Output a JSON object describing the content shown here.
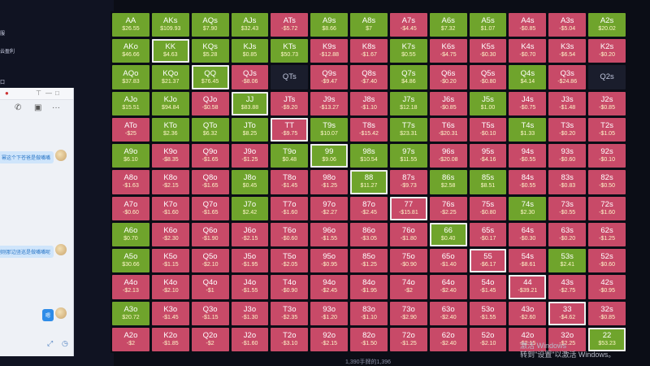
{
  "desktop": {
    "menu_fragments": [
      "服",
      "云盈利",
      "",
      "口"
    ]
  },
  "chat": {
    "messages": [
      {
        "text": "幂这个下苍爸是做嘴嘴"
      },
      {
        "text": "刚刚那边竖巡是做嘴嘴呢"
      },
      {
        "text": "嗯"
      }
    ]
  },
  "grid": [
    [
      {
        "h": "AA",
        "v": "$26.55",
        "c": "green"
      },
      {
        "h": "AKs",
        "v": "$109.93",
        "c": "green"
      },
      {
        "h": "AQs",
        "v": "$7.90",
        "c": "green"
      },
      {
        "h": "AJs",
        "v": "$32.43",
        "c": "green"
      },
      {
        "h": "ATs",
        "v": "-$5.72",
        "c": "red"
      },
      {
        "h": "A9s",
        "v": "$8.66",
        "c": "green"
      },
      {
        "h": "A8s",
        "v": "$7",
        "c": "green"
      },
      {
        "h": "A7s",
        "v": "-$4.45",
        "c": "red"
      },
      {
        "h": "A6s",
        "v": "$7.32",
        "c": "green"
      },
      {
        "h": "A5s",
        "v": "$1.07",
        "c": "green"
      },
      {
        "h": "A4s",
        "v": "-$0.85",
        "c": "red"
      },
      {
        "h": "A3s",
        "v": "-$5.04",
        "c": "red"
      },
      {
        "h": "A2s",
        "v": "$20.02",
        "c": "green"
      }
    ],
    [
      {
        "h": "AKo",
        "v": "$46.66",
        "c": "green"
      },
      {
        "h": "KK",
        "v": "$4.63",
        "c": "green",
        "sel": true
      },
      {
        "h": "KQs",
        "v": "$5.28",
        "c": "green"
      },
      {
        "h": "KJs",
        "v": "$0.85",
        "c": "green"
      },
      {
        "h": "KTs",
        "v": "$50.73",
        "c": "green"
      },
      {
        "h": "K9s",
        "v": "-$12.88",
        "c": "red"
      },
      {
        "h": "K8s",
        "v": "-$1.67",
        "c": "red"
      },
      {
        "h": "K7s",
        "v": "$0.55",
        "c": "green"
      },
      {
        "h": "K6s",
        "v": "-$4.75",
        "c": "red"
      },
      {
        "h": "K5s",
        "v": "-$0.30",
        "c": "red"
      },
      {
        "h": "K4s",
        "v": "-$0.70",
        "c": "red"
      },
      {
        "h": "K3s",
        "v": "-$6.54",
        "c": "red"
      },
      {
        "h": "K2s",
        "v": "-$0.20",
        "c": "red"
      }
    ],
    [
      {
        "h": "AQo",
        "v": "$37.83",
        "c": "green"
      },
      {
        "h": "KQo",
        "v": "$21.37",
        "c": "green"
      },
      {
        "h": "QQ",
        "v": "$76.45",
        "c": "green",
        "sel": true
      },
      {
        "h": "QJs",
        "v": "-$8.06",
        "c": "red"
      },
      {
        "h": "QTs",
        "v": "",
        "c": "dark"
      },
      {
        "h": "Q9s",
        "v": "-$9.47",
        "c": "red"
      },
      {
        "h": "Q8s",
        "v": "-$7.40",
        "c": "red"
      },
      {
        "h": "Q7s",
        "v": "$4.86",
        "c": "green"
      },
      {
        "h": "Q6s",
        "v": "-$0.20",
        "c": "red"
      },
      {
        "h": "Q5s",
        "v": "-$0.80",
        "c": "red"
      },
      {
        "h": "Q4s",
        "v": "$4.14",
        "c": "green"
      },
      {
        "h": "Q3s",
        "v": "-$24.86",
        "c": "red"
      },
      {
        "h": "Q2s",
        "v": "",
        "c": "dark"
      }
    ],
    [
      {
        "h": "AJo",
        "v": "$15.51",
        "c": "green"
      },
      {
        "h": "KJo",
        "v": "$94.84",
        "c": "green"
      },
      {
        "h": "QJo",
        "v": "-$0.58",
        "c": "red"
      },
      {
        "h": "JJ",
        "v": "$83.88",
        "c": "green",
        "sel": true
      },
      {
        "h": "JTs",
        "v": "-$9.20",
        "c": "red"
      },
      {
        "h": "J9s",
        "v": "-$13.27",
        "c": "red"
      },
      {
        "h": "J8s",
        "v": "-$1.10",
        "c": "red"
      },
      {
        "h": "J7s",
        "v": "$12.18",
        "c": "green"
      },
      {
        "h": "J6s",
        "v": "-$0.85",
        "c": "red"
      },
      {
        "h": "J5s",
        "v": "$1.00",
        "c": "green"
      },
      {
        "h": "J4s",
        "v": "-$0.75",
        "c": "red"
      },
      {
        "h": "J3s",
        "v": "-$1.48",
        "c": "red"
      },
      {
        "h": "J2s",
        "v": "-$0.85",
        "c": "red"
      }
    ],
    [
      {
        "h": "ATo",
        "v": "-$25",
        "c": "red"
      },
      {
        "h": "KTo",
        "v": "$2.36",
        "c": "green"
      },
      {
        "h": "QTo",
        "v": "$6.32",
        "c": "green"
      },
      {
        "h": "JTo",
        "v": "$8.25",
        "c": "green"
      },
      {
        "h": "TT",
        "v": "-$9.75",
        "c": "red",
        "sel": true
      },
      {
        "h": "T9s",
        "v": "$10.07",
        "c": "green"
      },
      {
        "h": "T8s",
        "v": "-$15.42",
        "c": "red"
      },
      {
        "h": "T7s",
        "v": "$23.31",
        "c": "green"
      },
      {
        "h": "T6s",
        "v": "-$20.31",
        "c": "red"
      },
      {
        "h": "T5s",
        "v": "-$0.10",
        "c": "red"
      },
      {
        "h": "T4s",
        "v": "$1.33",
        "c": "green"
      },
      {
        "h": "T3s",
        "v": "-$0.20",
        "c": "red"
      },
      {
        "h": "T2s",
        "v": "-$1.05",
        "c": "red"
      }
    ],
    [
      {
        "h": "A9o",
        "v": "$6.10",
        "c": "green"
      },
      {
        "h": "K9o",
        "v": "-$8.35",
        "c": "red"
      },
      {
        "h": "Q9o",
        "v": "-$1.65",
        "c": "red"
      },
      {
        "h": "J9o",
        "v": "-$1.25",
        "c": "red"
      },
      {
        "h": "T9o",
        "v": "$0.48",
        "c": "green"
      },
      {
        "h": "99",
        "v": "$9.06",
        "c": "green",
        "sel": true
      },
      {
        "h": "98s",
        "v": "$10.54",
        "c": "green"
      },
      {
        "h": "97s",
        "v": "$11.55",
        "c": "green"
      },
      {
        "h": "96s",
        "v": "-$20.08",
        "c": "red"
      },
      {
        "h": "95s",
        "v": "-$4.16",
        "c": "red"
      },
      {
        "h": "94s",
        "v": "-$0.55",
        "c": "red"
      },
      {
        "h": "93s",
        "v": "-$0.60",
        "c": "red"
      },
      {
        "h": "92s",
        "v": "-$0.10",
        "c": "red"
      }
    ],
    [
      {
        "h": "A8o",
        "v": "-$1.63",
        "c": "red"
      },
      {
        "h": "K8o",
        "v": "-$2.15",
        "c": "red"
      },
      {
        "h": "Q8o",
        "v": "-$1.65",
        "c": "red"
      },
      {
        "h": "J8o",
        "v": "$0.45",
        "c": "green"
      },
      {
        "h": "T8o",
        "v": "-$1.45",
        "c": "red"
      },
      {
        "h": "98o",
        "v": "-$1.25",
        "c": "red"
      },
      {
        "h": "88",
        "v": "$11.27",
        "c": "green",
        "sel": true
      },
      {
        "h": "87s",
        "v": "-$9.73",
        "c": "red"
      },
      {
        "h": "86s",
        "v": "$2.58",
        "c": "green"
      },
      {
        "h": "85s",
        "v": "$8.51",
        "c": "green"
      },
      {
        "h": "84s",
        "v": "-$0.55",
        "c": "red"
      },
      {
        "h": "83s",
        "v": "-$0.83",
        "c": "red"
      },
      {
        "h": "82s",
        "v": "-$0.50",
        "c": "red"
      }
    ],
    [
      {
        "h": "A7o",
        "v": "-$0.60",
        "c": "red"
      },
      {
        "h": "K7o",
        "v": "-$1.60",
        "c": "red"
      },
      {
        "h": "Q7o",
        "v": "-$1.65",
        "c": "red"
      },
      {
        "h": "J7o",
        "v": "$2.42",
        "c": "green"
      },
      {
        "h": "T7o",
        "v": "-$1.60",
        "c": "red"
      },
      {
        "h": "97o",
        "v": "-$2.27",
        "c": "red"
      },
      {
        "h": "87o",
        "v": "-$2.45",
        "c": "red"
      },
      {
        "h": "77",
        "v": "-$15.81",
        "c": "red",
        "sel": true
      },
      {
        "h": "76s",
        "v": "-$2.25",
        "c": "red"
      },
      {
        "h": "75s",
        "v": "-$0.80",
        "c": "red"
      },
      {
        "h": "74s",
        "v": "$2.30",
        "c": "green"
      },
      {
        "h": "73s",
        "v": "-$0.55",
        "c": "red"
      },
      {
        "h": "72s",
        "v": "-$1.60",
        "c": "red"
      }
    ],
    [
      {
        "h": "A6o",
        "v": "$0.70",
        "c": "green"
      },
      {
        "h": "K6o",
        "v": "-$2.30",
        "c": "red"
      },
      {
        "h": "Q6o",
        "v": "-$1.90",
        "c": "red"
      },
      {
        "h": "J6o",
        "v": "-$2.15",
        "c": "red"
      },
      {
        "h": "T6o",
        "v": "-$0.60",
        "c": "red"
      },
      {
        "h": "96o",
        "v": "-$1.55",
        "c": "red"
      },
      {
        "h": "86o",
        "v": "-$3.05",
        "c": "red"
      },
      {
        "h": "76o",
        "v": "-$1.80",
        "c": "red"
      },
      {
        "h": "66",
        "v": "$0.40",
        "c": "green",
        "sel": true
      },
      {
        "h": "65s",
        "v": "-$0.17",
        "c": "red"
      },
      {
        "h": "64s",
        "v": "-$0.30",
        "c": "red"
      },
      {
        "h": "63s",
        "v": "-$0.20",
        "c": "red"
      },
      {
        "h": "62s",
        "v": "-$1.25",
        "c": "red"
      }
    ],
    [
      {
        "h": "A5o",
        "v": "$30.66",
        "c": "green"
      },
      {
        "h": "K5o",
        "v": "-$1.15",
        "c": "red"
      },
      {
        "h": "Q5o",
        "v": "-$2.10",
        "c": "red"
      },
      {
        "h": "J5o",
        "v": "-$1.95",
        "c": "red"
      },
      {
        "h": "T5o",
        "v": "-$2.05",
        "c": "red"
      },
      {
        "h": "95o",
        "v": "-$0.95",
        "c": "red"
      },
      {
        "h": "85o",
        "v": "-$1.25",
        "c": "red"
      },
      {
        "h": "75o",
        "v": "-$0.90",
        "c": "red"
      },
      {
        "h": "65o",
        "v": "-$1.40",
        "c": "red"
      },
      {
        "h": "55",
        "v": "-$6.17",
        "c": "red",
        "sel": true
      },
      {
        "h": "54s",
        "v": "-$8.61",
        "c": "red"
      },
      {
        "h": "53s",
        "v": "$2.41",
        "c": "green"
      },
      {
        "h": "52s",
        "v": "-$0.60",
        "c": "red"
      }
    ],
    [
      {
        "h": "A4o",
        "v": "-$2.13",
        "c": "red"
      },
      {
        "h": "K4o",
        "v": "-$2.10",
        "c": "red"
      },
      {
        "h": "Q4o",
        "v": "-$1",
        "c": "red"
      },
      {
        "h": "J4o",
        "v": "-$1.55",
        "c": "red"
      },
      {
        "h": "T4o",
        "v": "-$0.90",
        "c": "red"
      },
      {
        "h": "94o",
        "v": "-$2.45",
        "c": "red"
      },
      {
        "h": "84o",
        "v": "-$1.95",
        "c": "red"
      },
      {
        "h": "74o",
        "v": "-$2",
        "c": "red"
      },
      {
        "h": "64o",
        "v": "-$2.40",
        "c": "red"
      },
      {
        "h": "54o",
        "v": "-$1.45",
        "c": "red"
      },
      {
        "h": "44",
        "v": "-$39.21",
        "c": "red",
        "sel": true
      },
      {
        "h": "43s",
        "v": "-$2.75",
        "c": "red"
      },
      {
        "h": "42s",
        "v": "-$0.95",
        "c": "red"
      }
    ],
    [
      {
        "h": "A3o",
        "v": "$20.72",
        "c": "green"
      },
      {
        "h": "K3o",
        "v": "-$1.45",
        "c": "red"
      },
      {
        "h": "Q3o",
        "v": "-$1.15",
        "c": "red"
      },
      {
        "h": "J3o",
        "v": "-$1.30",
        "c": "red"
      },
      {
        "h": "T3o",
        "v": "-$2.35",
        "c": "red"
      },
      {
        "h": "93o",
        "v": "-$1.20",
        "c": "red"
      },
      {
        "h": "83o",
        "v": "-$1.10",
        "c": "red"
      },
      {
        "h": "73o",
        "v": "-$2.90",
        "c": "red"
      },
      {
        "h": "63o",
        "v": "-$2.40",
        "c": "red"
      },
      {
        "h": "53o",
        "v": "-$1.55",
        "c": "red"
      },
      {
        "h": "43o",
        "v": "-$2.60",
        "c": "red"
      },
      {
        "h": "33",
        "v": "-$4.62",
        "c": "red",
        "sel": true
      },
      {
        "h": "32s",
        "v": "-$0.85",
        "c": "red"
      }
    ],
    [
      {
        "h": "A2o",
        "v": "-$2",
        "c": "red"
      },
      {
        "h": "K2o",
        "v": "-$1.85",
        "c": "red"
      },
      {
        "h": "Q2o",
        "v": "-$2",
        "c": "red"
      },
      {
        "h": "J2o",
        "v": "-$1.60",
        "c": "red"
      },
      {
        "h": "T2o",
        "v": "-$3.10",
        "c": "red"
      },
      {
        "h": "92o",
        "v": "-$2.15",
        "c": "red"
      },
      {
        "h": "82o",
        "v": "-$1.50",
        "c": "red"
      },
      {
        "h": "72o",
        "v": "-$1.25",
        "c": "red"
      },
      {
        "h": "62o",
        "v": "-$2.40",
        "c": "red"
      },
      {
        "h": "52o",
        "v": "-$2.10",
        "c": "red"
      },
      {
        "h": "42o",
        "v": "-$2.15",
        "c": "red"
      },
      {
        "h": "32o",
        "v": "-$2.25",
        "c": "red"
      },
      {
        "h": "22",
        "v": "$53.23",
        "c": "green",
        "sel": true
      }
    ]
  ],
  "footer_count": "1,390手牌的1,396",
  "watermark": {
    "line1": "激活 Windows",
    "line2": "转到\"设置\"以激活 Windows。"
  },
  "colors": {
    "win": "#6fa42c",
    "loss": "#c84a68",
    "empty": "#1a1d2c"
  }
}
